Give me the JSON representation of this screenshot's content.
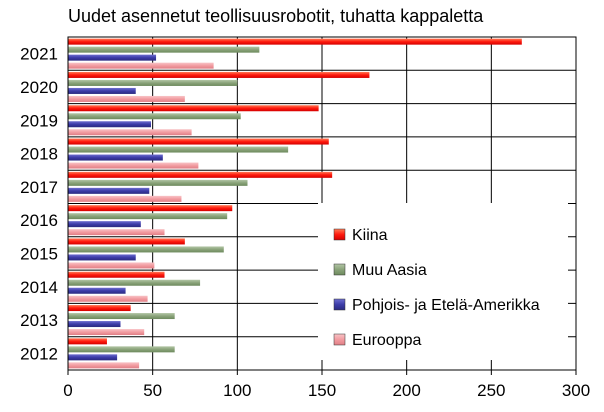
{
  "chart_data": {
    "type": "bar",
    "orientation": "horizontal",
    "title": "Uudet asennetut teollisuusrobotit, tuhatta kappaletta",
    "categories": [
      "2021",
      "2020",
      "2019",
      "2018",
      "2017",
      "2016",
      "2015",
      "2014",
      "2013",
      "2012"
    ],
    "series": [
      {
        "name": "Kiina",
        "color": "#ff1a0e",
        "values": [
          268,
          178,
          148,
          154,
          156,
          97,
          69,
          57,
          37,
          23
        ]
      },
      {
        "name": "Muu Aasia",
        "color": "#8aa37a",
        "values": [
          113,
          100,
          102,
          130,
          106,
          94,
          92,
          78,
          63,
          63
        ]
      },
      {
        "name": "Pohjois- ja Etelä-Amerikka",
        "color": "#3c3ca8",
        "values": [
          52,
          40,
          49,
          56,
          48,
          43,
          40,
          34,
          31,
          29
        ]
      },
      {
        "name": "Eurooppa",
        "color": "#f29ca1",
        "values": [
          86,
          69,
          73,
          77,
          67,
          57,
          51,
          47,
          45,
          42
        ]
      }
    ],
    "xlim": [
      0,
      300
    ],
    "xticks": [
      0,
      50,
      100,
      150,
      200,
      250,
      300
    ],
    "grid": "vertical and category separators",
    "legend_position": "right-center"
  }
}
